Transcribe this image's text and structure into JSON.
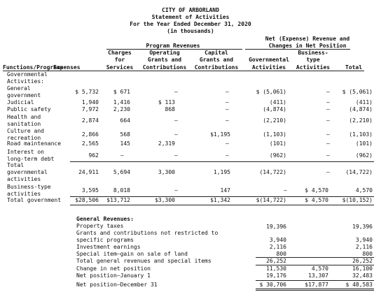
{
  "title": {
    "line1": "CITY OF ARBORLAND",
    "line2": "Statement of Activities",
    "line3": "For the Year Ended December 31, 2020",
    "line4": "(in thousands)"
  },
  "headers": {
    "net_line1": "Net (Expense) Revenue and",
    "net_line2": "Changes in Net Position",
    "program_revenues": "Program Revenues",
    "functions": "Functions/Programs",
    "expenses": "Expenses",
    "charges_l1": "Charges",
    "charges_l2": "for",
    "charges_l3": "Services",
    "operating_l1": "Operating",
    "operating_l2": "Grants and",
    "operating_l3": "Contributions",
    "capital_l1": "Capital",
    "capital_l2": "Grants and",
    "capital_l3": "Contributions",
    "gov_l1": "Governmental",
    "gov_l2": "Activities",
    "bus_l1": "Business-",
    "bus_l2": "type",
    "bus_l3": "Activities",
    "total": "Total"
  },
  "section_gov": "Governmental",
  "section_gov2": "Activities:",
  "rows": [
    {
      "label": [
        "General",
        "government"
      ],
      "exp": "$ 5,732",
      "chg": "$    671",
      "op": "—",
      "cap": "—",
      "gov": "$ (5,061)",
      "bus": "—",
      "tot": "$ (5,061)"
    },
    {
      "label": [
        "Judicial"
      ],
      "exp": "1,940",
      "chg": "1,416",
      "op": "$   113",
      "cap": "—",
      "gov": "(411)",
      "bus": "—",
      "tot": "(411)"
    },
    {
      "label": [
        "Public safety"
      ],
      "exp": "7,972",
      "chg": "2,230",
      "op": "868",
      "cap": "—",
      "gov": "(4,874)",
      "bus": "—",
      "tot": "(4,874)"
    },
    {
      "label": [
        "Health and",
        "sanitation"
      ],
      "exp": "2,874",
      "chg": "664",
      "op": "—",
      "cap": "—",
      "gov": "(2,210)",
      "bus": "—",
      "tot": "(2,210)"
    },
    {
      "label": [
        "Culture and",
        "recreation"
      ],
      "exp": "2,866",
      "chg": "568",
      "op": "—",
      "cap": "$1,195",
      "gov": "(1,103)",
      "bus": "—",
      "tot": "(1,103)"
    },
    {
      "label": [
        "Road maintenance"
      ],
      "exp": "2,565",
      "chg": "145",
      "op": "2,319",
      "cap": "—",
      "gov": "(101)",
      "bus": "—",
      "tot": "(101)"
    },
    {
      "label": [
        "Interest on",
        "long-term debt"
      ],
      "exp": "962",
      "chg": "—",
      "op": "—",
      "cap": "—",
      "gov": "(962)",
      "bus": "—",
      "tot": "(962)"
    },
    {
      "label": [
        "Total",
        "governmental",
        "activities"
      ],
      "exp": "24,911",
      "chg": "5,694",
      "op": "3,300",
      "cap": "1,195",
      "gov": "(14,722)",
      "bus": "—",
      "tot": "(14,722)"
    },
    {
      "label": [
        "Business-type",
        "activities"
      ],
      "exp": "3,595",
      "chg": "8,018",
      "op": "—",
      "cap": "147",
      "gov": "—",
      "bus": "$ 4,570",
      "tot": "4,570"
    },
    {
      "label": [
        "Total government"
      ],
      "exp": "$28,506",
      "chg": "$13,712",
      "op": "$3,300",
      "cap": "$1,342",
      "gov": "$(14,722)",
      "bus": "$ 4,570",
      "tot": "$(10,152)"
    }
  ],
  "general": {
    "heading": "General Revenues:",
    "items": [
      {
        "label": "Property taxes",
        "gov": "19,396",
        "bus": "",
        "tot": "19,396"
      },
      {
        "label": "Grants and contributions not restricted to",
        "gov": "",
        "bus": "",
        "tot": ""
      },
      {
        "label": "  specific programs",
        "gov": "3,940",
        "bus": "",
        "tot": "3,940"
      },
      {
        "label": "Investment earnings",
        "gov": "2,116",
        "bus": "",
        "tot": "2,116"
      },
      {
        "label": "Special item—gain on sale of land",
        "gov": "800",
        "bus": "",
        "tot": "800"
      },
      {
        "label": "  Total general revenues and special items",
        "gov": "26,252",
        "bus": "",
        "tot": "26,252"
      },
      {
        "label": "Change in net position",
        "gov": "11,530",
        "bus": "4,570",
        "tot": "16,100"
      },
      {
        "label": "Net position—January 1",
        "gov": "19,176",
        "bus": "13,307",
        "tot": "32,483"
      },
      {
        "label": "Net position—December 31",
        "gov": "$ 30,706",
        "bus": "$17,877",
        "tot": "$ 48,583"
      }
    ]
  }
}
